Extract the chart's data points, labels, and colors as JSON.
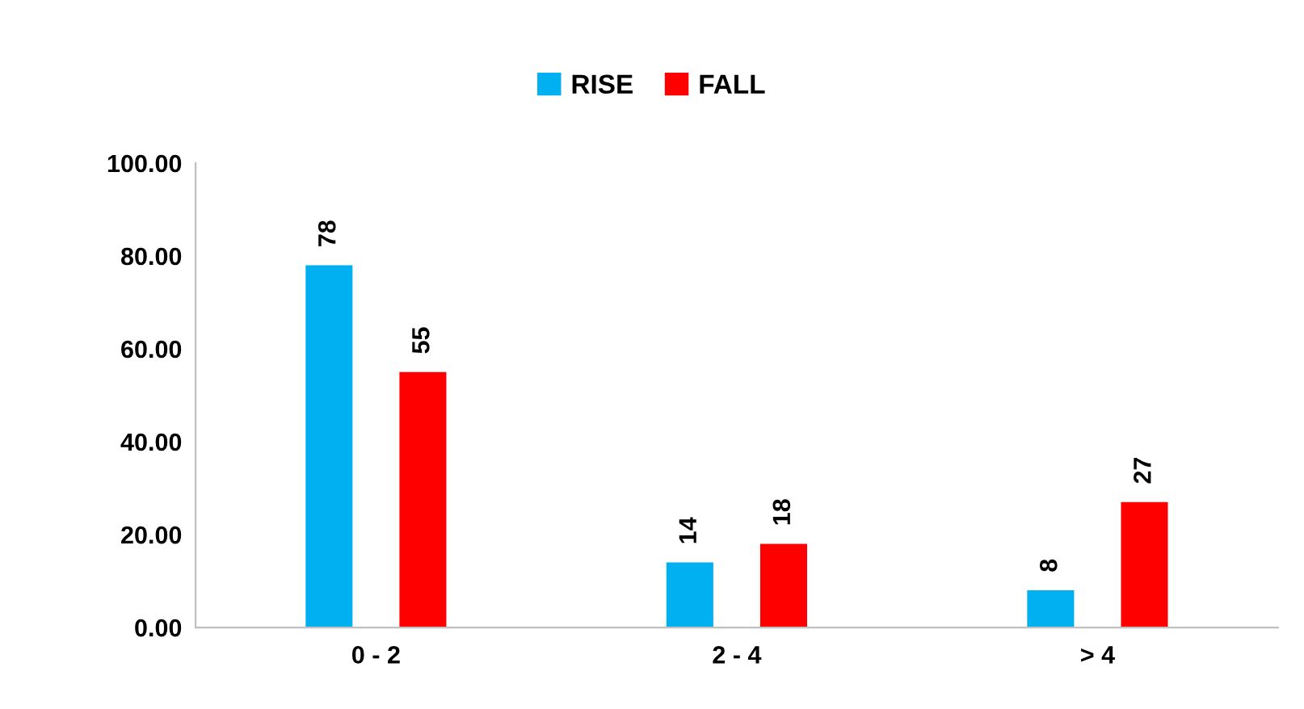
{
  "chart_data": {
    "type": "bar",
    "categories": [
      "0 - 2",
      "2 - 4",
      "> 4"
    ],
    "series": [
      {
        "name": "RISE",
        "color": "#00b0f0",
        "values": [
          78,
          14,
          8
        ]
      },
      {
        "name": "FALL",
        "color": "#ff0000",
        "values": [
          55,
          18,
          27
        ]
      }
    ],
    "ylim": [
      0,
      100
    ],
    "yticks": [
      {
        "value": 0,
        "label": "0.00"
      },
      {
        "value": 20,
        "label": "20.00"
      },
      {
        "value": 40,
        "label": "40.00"
      },
      {
        "value": 60,
        "label": "60.00"
      },
      {
        "value": 80,
        "label": "80.00"
      },
      {
        "value": 100,
        "label": "100.00"
      }
    ],
    "data_labels": true,
    "grid": false,
    "legend": "top"
  }
}
